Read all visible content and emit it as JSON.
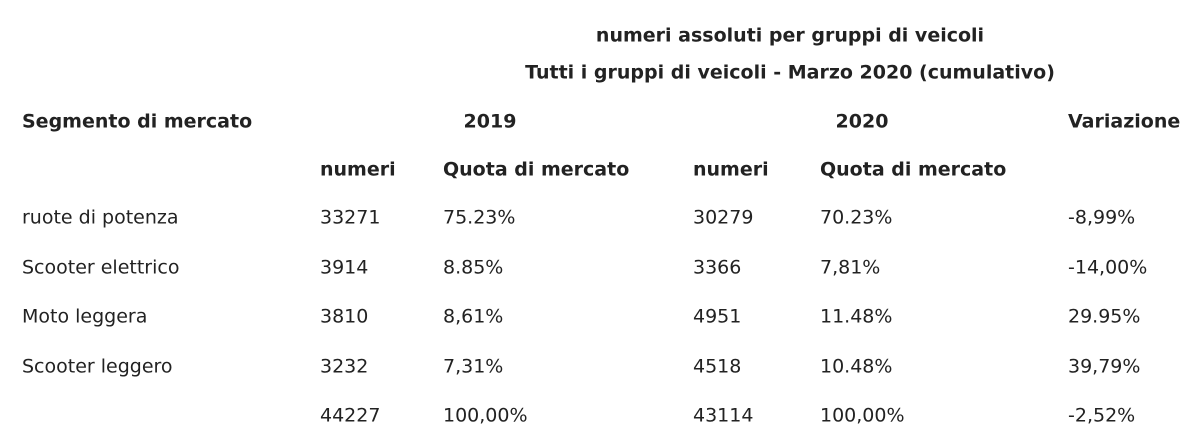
{
  "title": [
    "numeri assoluti per gruppi di veicoli",
    "Tutti i gruppi di veicoli - Marzo 2020 (cumulativo)"
  ],
  "header": {
    "segment": "Segmento di mercato",
    "year_a": "2019",
    "year_b": "2020",
    "change": "Variazione"
  },
  "subheader": [
    "numeri",
    "Quota di mercato",
    "numeri",
    "Quota di mercato"
  ],
  "rows": [
    {
      "label": "ruote di potenza",
      "cells": [
        "33271",
        "75.23%",
        "30279",
        "70.23%",
        "-8,99%"
      ]
    },
    {
      "label": "Scooter elettrico",
      "cells": [
        "3914",
        "8.85%",
        "3366",
        "7,81%",
        "-14,00%"
      ]
    },
    {
      "label": "Moto leggera",
      "cells": [
        "3810",
        "8,61%",
        "4951",
        "11.48%",
        "29.95%"
      ]
    },
    {
      "label": "Scooter leggero",
      "cells": [
        "3232",
        "7,31%",
        "4518",
        "10.48%",
        "39,79%"
      ]
    },
    {
      "cells": [
        "44227",
        "100,00%",
        "43114",
        "100,00%",
        "-2,52%"
      ]
    }
  ]
}
